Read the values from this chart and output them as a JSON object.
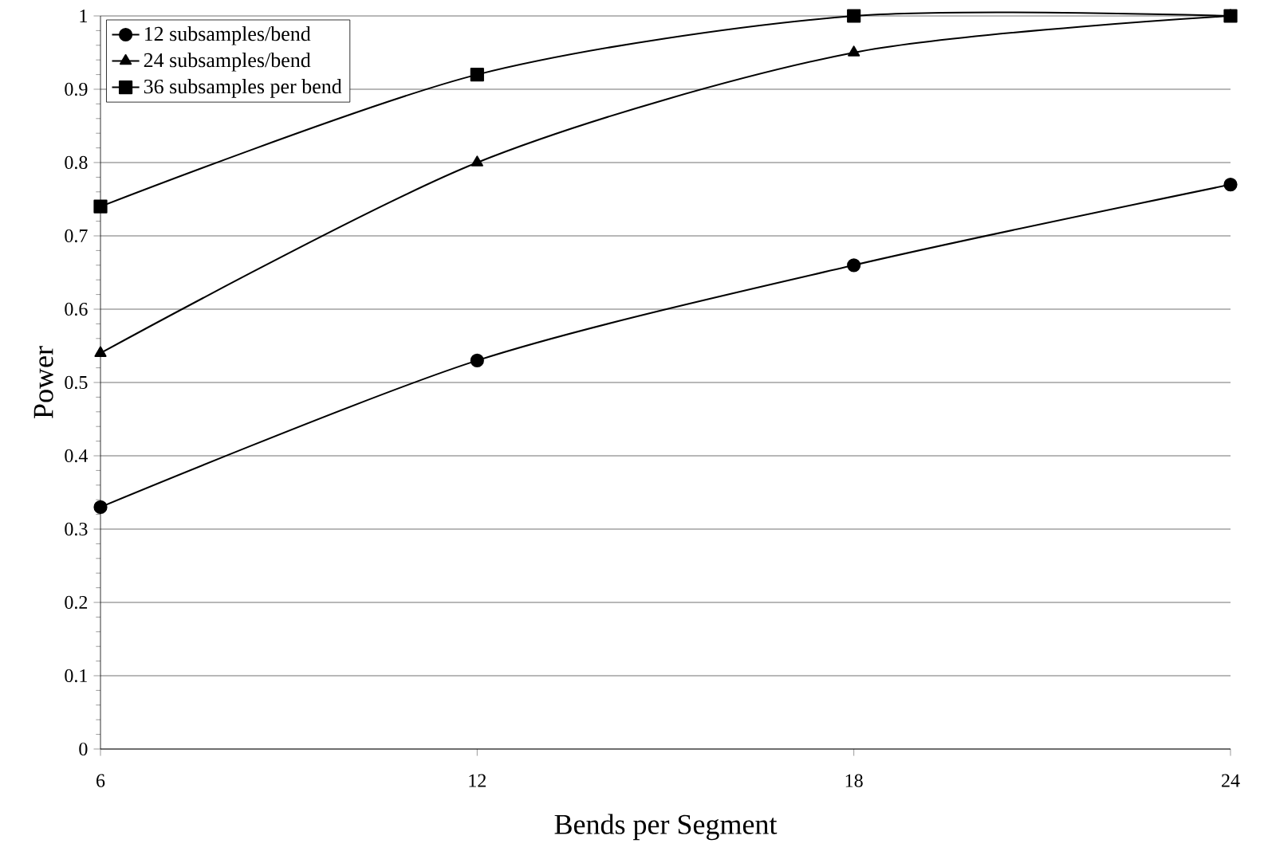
{
  "chart_data": {
    "type": "line",
    "xlabel": "Bends per Segment",
    "ylabel": "Power",
    "categories": [
      "6",
      "12",
      "18",
      "24"
    ],
    "series": [
      {
        "name": "12 subsamples/bend",
        "color": "#000000",
        "marker": "circle",
        "values": [
          0.33,
          0.53,
          0.66,
          0.77
        ]
      },
      {
        "name": "24 subsamples/bend",
        "color": "#000000",
        "marker": "triangle",
        "values": [
          0.54,
          0.8,
          0.95,
          1.0
        ]
      },
      {
        "name": "36 subsamples per bend",
        "color": "#000000",
        "marker": "square",
        "values": [
          0.74,
          0.92,
          1.0,
          1.0
        ]
      }
    ],
    "ylim": [
      0,
      1
    ],
    "yticks": [
      0,
      0.1,
      0.2,
      0.3,
      0.4,
      0.5,
      0.6,
      0.7,
      0.8,
      0.9,
      1
    ],
    "grid": "y",
    "legend": "top left",
    "line_style": "solid"
  }
}
